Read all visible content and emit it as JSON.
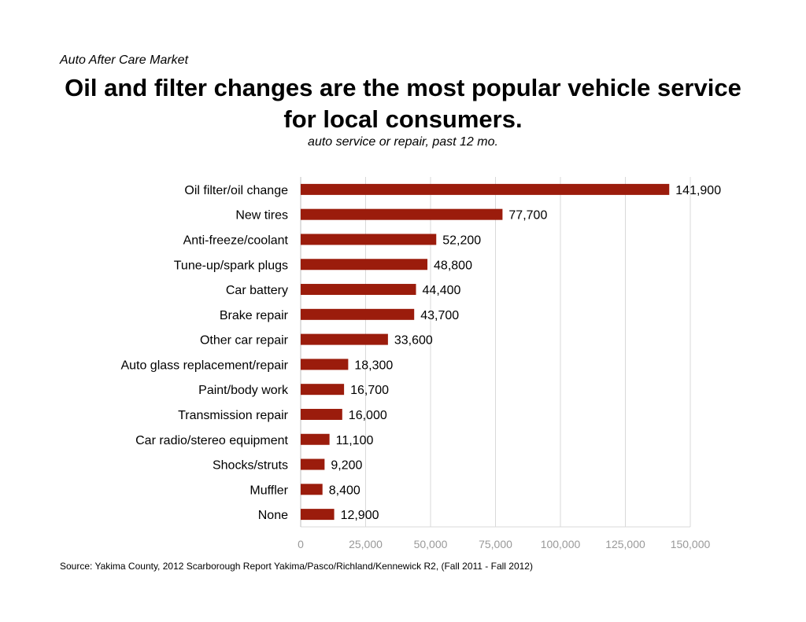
{
  "header": {
    "kicker": "Auto After Care Market",
    "title": "Oil and filter changes are the most popular vehicle service for local consumers.",
    "subtitle": "auto service or repair, past 12 mo."
  },
  "footer": {
    "source": "Source: Yakima County, 2012 Scarborough Report Yakima/Pasco/Richland/Kennewick R2, (Fall 2011 - Fall 2012)"
  },
  "chart_data": {
    "type": "bar",
    "orientation": "horizontal",
    "title": "Oil and filter changes are the most popular vehicle service for local consumers.",
    "subtitle": "auto service or repair, past 12 mo.",
    "categories": [
      "Oil filter/oil change",
      "New tires",
      "Anti-freeze/coolant",
      "Tune-up/spark plugs",
      "Car battery",
      "Brake repair",
      "Other car repair",
      "Auto glass replacement/repair",
      "Paint/body work",
      "Transmission repair",
      "Car radio/stereo equipment",
      "Shocks/struts",
      "Muffler",
      "None"
    ],
    "values": [
      141900,
      77700,
      52200,
      48800,
      44400,
      43700,
      33600,
      18300,
      16700,
      16000,
      11100,
      9200,
      8400,
      12900
    ],
    "data_labels": [
      "141,900",
      "77,700",
      "52,200",
      "48,800",
      "44,400",
      "43,700",
      "33,600",
      "18,300",
      "16,700",
      "16,000",
      "11,100",
      "9,200",
      "8,400",
      "12,900"
    ],
    "xlim": [
      0,
      150000
    ],
    "x_ticks": [
      0,
      25000,
      50000,
      75000,
      100000,
      125000,
      150000
    ],
    "x_tick_labels": [
      "0",
      "25,000",
      "50,000",
      "75,000",
      "100,000",
      "125,000",
      "150,000"
    ],
    "grid": true,
    "legend": "none",
    "bar_color": "#9b1c0c",
    "grid_color": "#d9d9d9"
  }
}
